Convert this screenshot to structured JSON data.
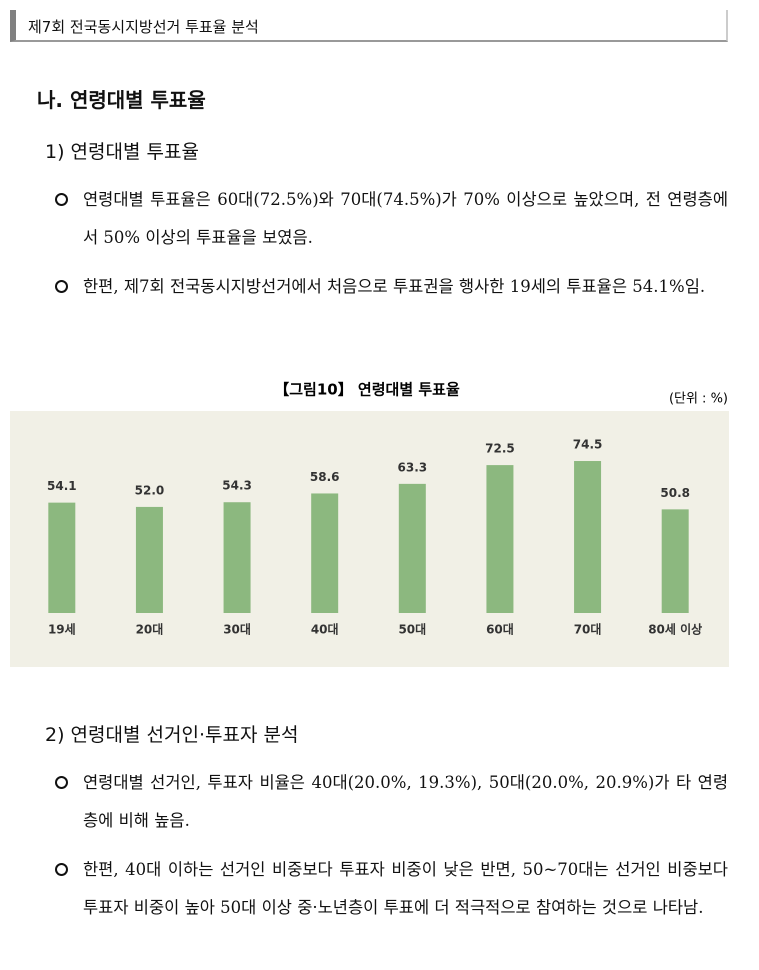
{
  "header": {
    "title": "제7회 전국동시지방선거 투표율 분석"
  },
  "section": {
    "title": "나. 연령대별 투표율"
  },
  "subsections": [
    {
      "title": "1) 연령대별 투표율",
      "bullets": [
        "연령대별 투표율은 60대(72.5%)와 70대(74.5%)가 70% 이상으로 높았으며, 전 연령층에서 50% 이상의 투표율을 보였음.",
        "한편, 제7회 전국동시지방선거에서 처음으로 투표권을 행사한 19세의 투표율은 54.1%임."
      ]
    },
    {
      "title": "2) 연령대별 선거인·투표자 분석",
      "bullets": [
        "연령대별 선거인, 투표자 비율은 40대(20.0%, 19.3%), 50대(20.0%, 20.9%)가 타 연령층에 비해 높음.",
        "한편, 40대 이하는 선거인 비중보다 투표자 비중이 낮은 반면, 50~70대는 선거인 비중보다 투표자 비중이 높아 50대 이상 중·노년층이 투표에 더 적극적으로 참여하는 것으로 나타남."
      ]
    }
  ],
  "chart_data": {
    "type": "bar",
    "title": "【그림10】 연령대별 투표율",
    "unit": "(단위 : %)",
    "categories": [
      "19세",
      "20대",
      "30대",
      "40대",
      "50대",
      "60대",
      "70대",
      "80세 이상"
    ],
    "values": [
      54.1,
      52.0,
      54.3,
      58.6,
      63.3,
      72.5,
      74.5,
      50.8
    ],
    "value_labels": [
      "54.1",
      "52.0",
      "54.3",
      "58.6",
      "63.3",
      "72.5",
      "74.5",
      "50.8"
    ],
    "color": "#8cb87f"
  }
}
